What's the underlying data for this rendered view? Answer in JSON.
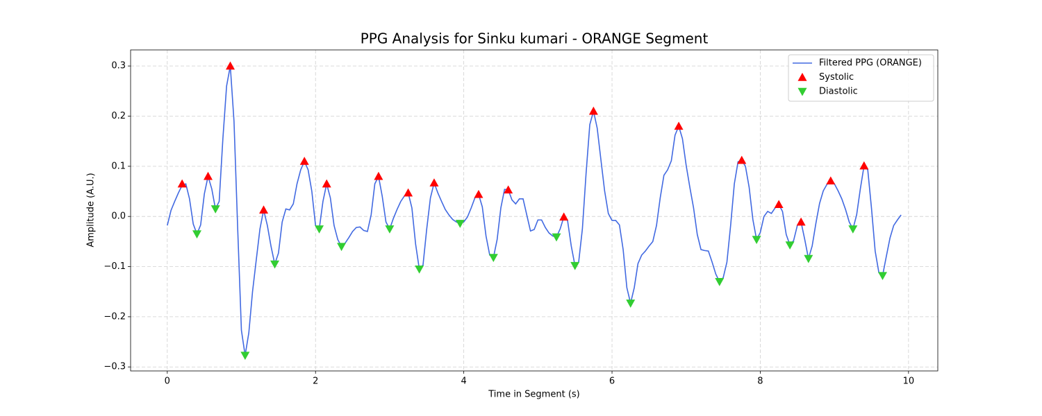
{
  "chart_data": {
    "type": "line",
    "title": "PPG Analysis for Sinku kumari - ORANGE Segment",
    "x_label": "Time in Segment (s)",
    "y_label": "Amplitude (A.U.)",
    "xlim": [
      -0.495,
      10.395
    ],
    "ylim": [
      -0.308,
      0.332
    ],
    "xticks": [
      0,
      2,
      4,
      6,
      8,
      10
    ],
    "yticks": [
      {
        "value": -0.3,
        "label": "−0.3"
      },
      {
        "value": -0.2,
        "label": "−0.2"
      },
      {
        "value": -0.1,
        "label": "−0.1"
      },
      {
        "value": 0,
        "label": "0.0"
      },
      0.1,
      0.2,
      0.3
    ],
    "grid": true,
    "legend": "upper right",
    "series": [
      {
        "name": "Filtered PPG (ORANGE)",
        "color": "#4169e1",
        "marker": "none",
        "x": [
          0,
          0.05,
          0.1,
          0.15,
          0.2,
          0.25,
          0.3,
          0.35,
          0.4,
          0.45,
          0.5,
          0.55,
          0.6,
          0.65,
          0.7,
          0.75,
          0.8,
          0.85,
          0.9,
          0.95,
          1,
          1.05,
          1.1,
          1.15,
          1.2,
          1.25,
          1.3,
          1.35,
          1.4,
          1.45,
          1.5,
          1.55,
          1.6,
          1.65,
          1.7,
          1.75,
          1.8,
          1.85,
          1.9,
          1.95,
          2,
          2.05,
          2.1,
          2.15,
          2.2,
          2.25,
          2.3,
          2.35,
          2.4,
          2.45,
          2.5,
          2.55,
          2.6,
          2.65,
          2.7,
          2.75,
          2.8,
          2.85,
          2.9,
          2.95,
          3,
          3.05,
          3.1,
          3.15,
          3.2,
          3.25,
          3.3,
          3.35,
          3.4,
          3.45,
          3.5,
          3.55,
          3.6,
          3.65,
          3.7,
          3.75,
          3.8,
          3.85,
          3.9,
          3.95,
          4,
          4.05,
          4.1,
          4.15,
          4.2,
          4.25,
          4.3,
          4.35,
          4.4,
          4.45,
          4.5,
          4.55,
          4.6,
          4.65,
          4.7,
          4.75,
          4.8,
          4.85,
          4.9,
          4.95,
          5,
          5.05,
          5.1,
          5.15,
          5.2,
          5.25,
          5.3,
          5.35,
          5.4,
          5.45,
          5.5,
          5.55,
          5.6,
          5.65,
          5.7,
          5.75,
          5.8,
          5.85,
          5.9,
          5.95,
          6,
          6.05,
          6.1,
          6.15,
          6.2,
          6.25,
          6.3,
          6.35,
          6.4,
          6.45,
          6.5,
          6.55,
          6.6,
          6.65,
          6.7,
          6.75,
          6.8,
          6.85,
          6.9,
          6.95,
          7,
          7.05,
          7.1,
          7.15,
          7.2,
          7.25,
          7.3,
          7.35,
          7.4,
          7.45,
          7.5,
          7.55,
          7.6,
          7.65,
          7.7,
          7.75,
          7.8,
          7.85,
          7.9,
          7.95,
          8,
          8.05,
          8.1,
          8.15,
          8.2,
          8.25,
          8.3,
          8.35,
          8.4,
          8.45,
          8.5,
          8.55,
          8.6,
          8.65,
          8.7,
          8.75,
          8.8,
          8.85,
          8.9,
          8.95,
          9,
          9.05,
          9.1,
          9.15,
          9.2,
          9.25,
          9.3,
          9.35,
          9.4,
          9.45,
          9.5,
          9.55,
          9.6,
          9.65,
          9.7,
          9.75,
          9.8,
          9.85,
          9.9
        ],
        "values": [
          -0.018,
          0.012,
          0.03,
          0.047,
          0.062,
          0.065,
          0.035,
          -0.015,
          -0.035,
          -0.017,
          0.045,
          0.08,
          0.055,
          0.015,
          0.03,
          0.155,
          0.26,
          0.3,
          0.19,
          -0.025,
          -0.227,
          -0.277,
          -0.232,
          -0.15,
          -0.087,
          -0.025,
          0.013,
          -0.018,
          -0.06,
          -0.095,
          -0.073,
          -0.011,
          0.015,
          0.013,
          0.025,
          0.065,
          0.093,
          0.11,
          0.093,
          0.05,
          -0.018,
          -0.025,
          0.03,
          0.065,
          0.037,
          -0.018,
          -0.046,
          -0.06,
          -0.053,
          -0.042,
          -0.03,
          -0.022,
          -0.021,
          -0.028,
          -0.03,
          0.003,
          0.065,
          0.08,
          0.04,
          -0.011,
          -0.025,
          -0.004,
          0.014,
          0.03,
          0.041,
          0.047,
          0.017,
          -0.055,
          -0.105,
          -0.097,
          -0.025,
          0.037,
          0.067,
          0.047,
          0.03,
          0.014,
          0.003,
          -0.006,
          -0.011,
          -0.014,
          -0.011,
          -0.001,
          0.017,
          0.037,
          0.044,
          0.019,
          -0.039,
          -0.077,
          -0.082,
          -0.046,
          0.017,
          0.054,
          0.053,
          0.033,
          0.025,
          0.035,
          0.035,
          0.003,
          -0.029,
          -0.026,
          -0.007,
          -0.007,
          -0.022,
          -0.033,
          -0.039,
          -0.041,
          -0.025,
          -0.001,
          -0.008,
          -0.059,
          -0.098,
          -0.091,
          -0.025,
          0.086,
          0.183,
          0.21,
          0.176,
          0.113,
          0.051,
          0.006,
          -0.008,
          -0.008,
          -0.017,
          -0.066,
          -0.142,
          -0.173,
          -0.142,
          -0.094,
          -0.077,
          -0.069,
          -0.059,
          -0.05,
          -0.018,
          0.037,
          0.082,
          0.093,
          0.111,
          0.162,
          0.18,
          0.155,
          0.102,
          0.058,
          0.017,
          -0.036,
          -0.066,
          -0.068,
          -0.069,
          -0.091,
          -0.115,
          -0.13,
          -0.122,
          -0.091,
          -0.018,
          0.065,
          0.109,
          0.112,
          0.1,
          0.058,
          -0.006,
          -0.046,
          -0.032,
          0,
          0.01,
          0.006,
          0.017,
          0.024,
          0.01,
          -0.036,
          -0.057,
          -0.048,
          -0.018,
          -0.011,
          -0.046,
          -0.084,
          -0.059,
          -0.014,
          0.026,
          0.051,
          0.064,
          0.071,
          0.065,
          0.051,
          0.035,
          0.014,
          -0.011,
          -0.025,
          0.003,
          0.055,
          0.101,
          0.093,
          0.017,
          -0.069,
          -0.112,
          -0.118,
          -0.08,
          -0.043,
          -0.018,
          -0.007,
          0.003
        ]
      },
      {
        "name": "Systolic",
        "color": "#ff0000",
        "marker": "up",
        "x": [
          0.2,
          0.55,
          0.85,
          1.3,
          1.85,
          2.15,
          2.85,
          3.25,
          3.6,
          4.2,
          4.6,
          5.35,
          5.75,
          6.9,
          7.75,
          8.25,
          8.55,
          8.95,
          9.4
        ],
        "values": [
          0.065,
          0.08,
          0.3,
          0.013,
          0.11,
          0.065,
          0.08,
          0.047,
          0.067,
          0.044,
          0.053,
          -0.001,
          0.21,
          0.18,
          0.112,
          0.024,
          -0.011,
          0.071,
          0.101
        ]
      },
      {
        "name": "Diastolic",
        "color": "#32cd32",
        "marker": "down",
        "x": [
          0.4,
          0.65,
          1.05,
          1.45,
          2.05,
          2.35,
          3,
          3.4,
          3.95,
          4.4,
          5.25,
          5.5,
          6.25,
          7.45,
          7.95,
          8.4,
          8.65,
          9.25,
          9.65
        ],
        "values": [
          -0.035,
          0.015,
          -0.277,
          -0.095,
          -0.025,
          -0.06,
          -0.025,
          -0.105,
          -0.014,
          -0.082,
          -0.041,
          -0.098,
          -0.173,
          -0.13,
          -0.046,
          -0.057,
          -0.084,
          -0.025,
          -0.118
        ]
      }
    ]
  }
}
